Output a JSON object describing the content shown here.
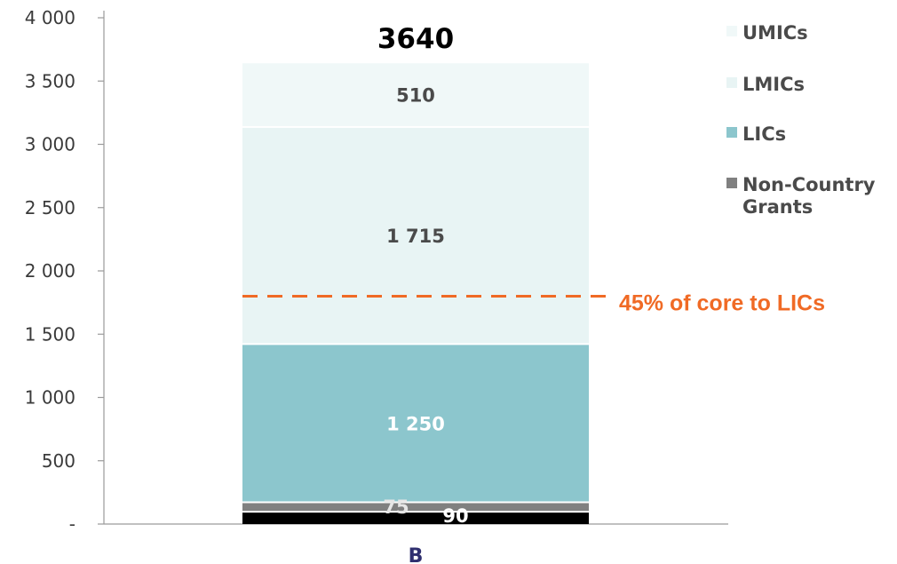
{
  "chart_data": {
    "type": "bar",
    "stacked": true,
    "categories": [
      "B"
    ],
    "ylim": [
      0,
      4000
    ],
    "y_ticks": [
      0,
      500,
      1000,
      1500,
      2000,
      2500,
      3000,
      3500,
      4000
    ],
    "y_tick_labels": [
      "-",
      "500",
      "1 000",
      "1 500",
      "2 000",
      "2 500",
      "3 000",
      "3 500",
      "4 000"
    ],
    "grid": false,
    "legend_position": "right",
    "total_label": "3640",
    "series": [
      {
        "name": "",
        "values": [
          90
        ],
        "label": "90",
        "color": "#000000",
        "label_color": "#ffffff"
      },
      {
        "name": "Non-Country Grants",
        "values": [
          75
        ],
        "label": "75",
        "color": "#808080",
        "label_color": "#e6e6e6"
      },
      {
        "name": "LICs",
        "values": [
          1250
        ],
        "label": "1 250",
        "color": "#8cc6cd",
        "label_color": "#ffffff"
      },
      {
        "name": "LMICs",
        "values": [
          1715
        ],
        "label": "1 715",
        "color": "#e8f4f4",
        "label_color": "#4a4a4a"
      },
      {
        "name": "UMICs",
        "values": [
          510
        ],
        "label": "510",
        "color": "#f0f8f8",
        "label_color": "#4a4a4a"
      }
    ],
    "legend": [
      {
        "lines": [
          "UMICs"
        ],
        "color": "#f0f8f8"
      },
      {
        "lines": [
          "LMICs"
        ],
        "color": "#e8f4f4"
      },
      {
        "lines": [
          "LICs"
        ],
        "color": "#8cc6cd"
      },
      {
        "lines": [
          "Non-Country",
          "Grants"
        ],
        "color": "#808080"
      }
    ],
    "reference_line": {
      "value": 1800,
      "label": "45% of core to LICs",
      "color": "#f06a25"
    }
  }
}
